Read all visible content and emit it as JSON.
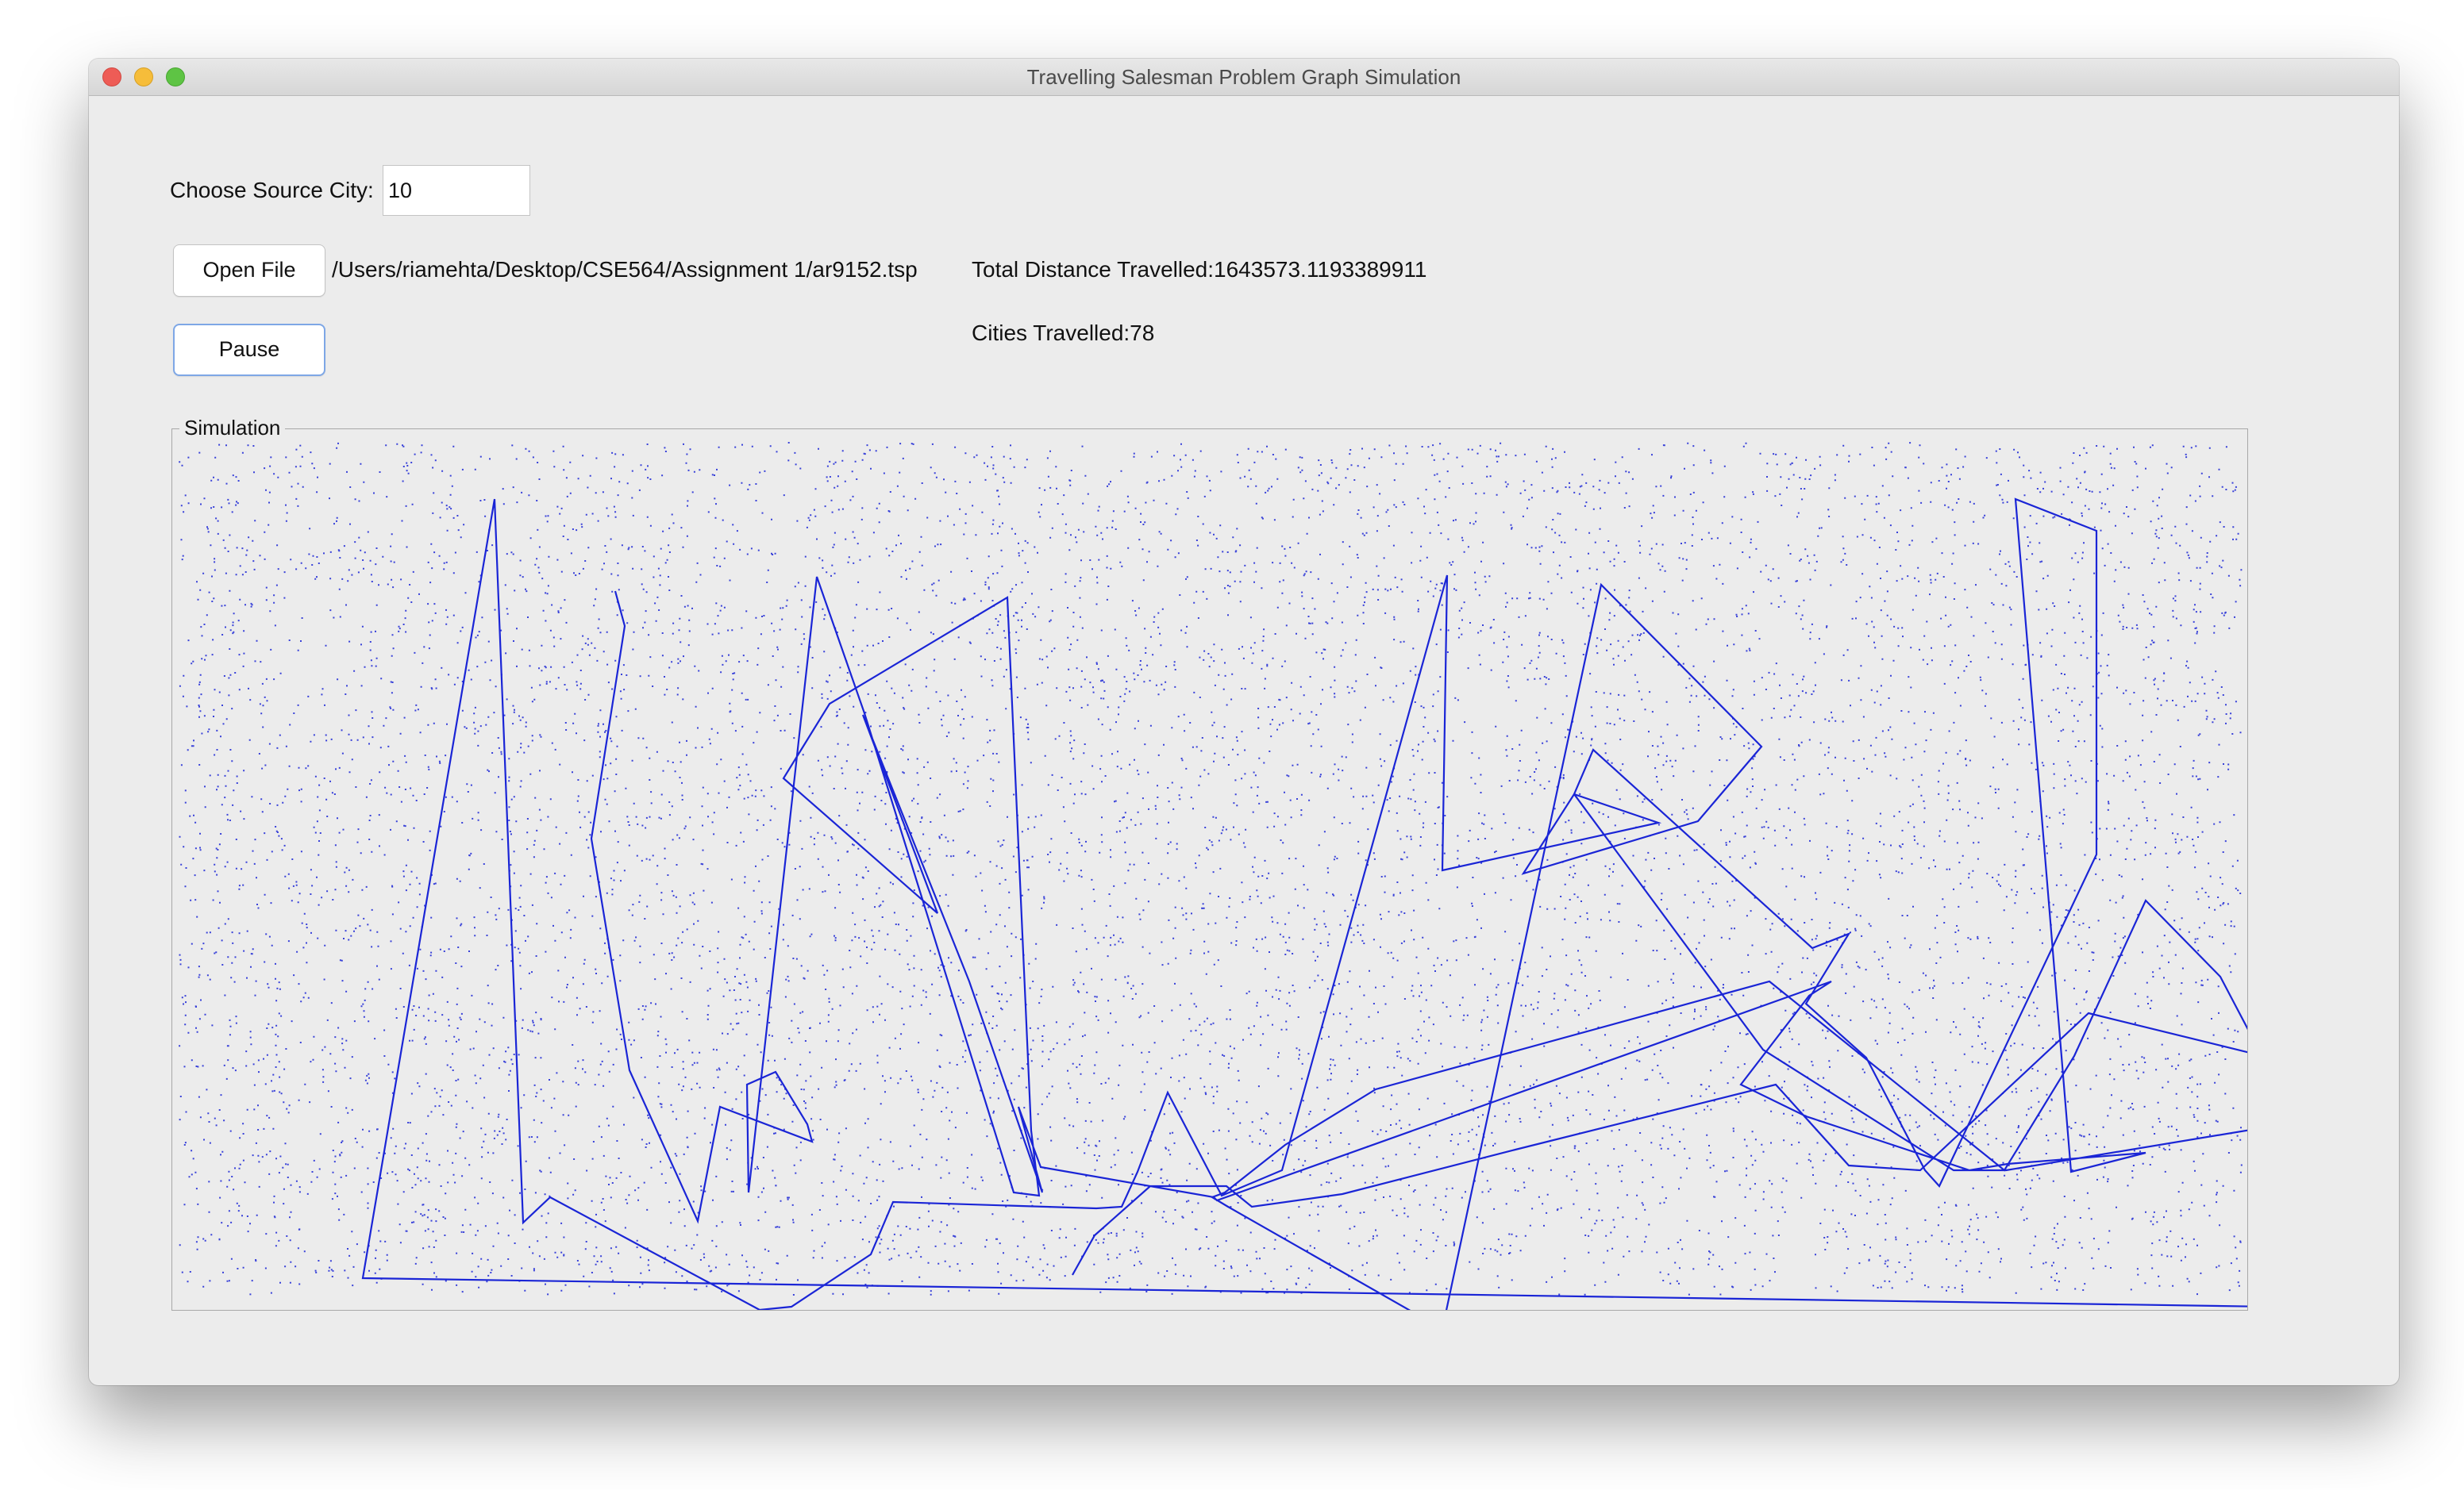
{
  "window": {
    "title": "Travelling Salesman Problem Graph Simulation"
  },
  "controls": {
    "source_city_label": "Choose Source City:",
    "source_city_value": "10",
    "open_file_label": "Open File",
    "file_path": "/Users/riamehta/Desktop/CSE564/Assignment 1/ar9152.tsp",
    "total_distance": "Total Distance Travelled:1643573.1193389911",
    "cities_travelled": "Cities Travelled:78",
    "pause_label": "Pause"
  },
  "simulation": {
    "legend": "Simulation",
    "total_cities": 9152,
    "cities_visited": 78,
    "route_color": "#1a25d6",
    "city_color": "#1a25d6"
  },
  "colors": {
    "window_bg": "#ececec",
    "route": "#1a25d6",
    "focus_ring": "#7ea7e6"
  }
}
